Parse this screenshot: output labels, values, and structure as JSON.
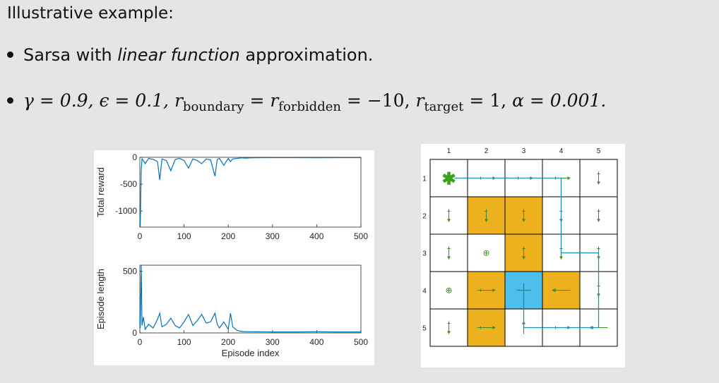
{
  "heading": "Illustrative example:",
  "bullets": {
    "b1": {
      "prefix": "Sarsa with ",
      "italic": "linear function",
      "suffix": " approximation."
    },
    "b2": {
      "gamma": "γ = 0.9,",
      "epsilon": "ϵ = 0.1,",
      "r": "r",
      "sub_boundary": "boundary",
      "eq1": " = ",
      "sub_forbidden": "forbidden",
      "eq2": " = −10,",
      "sub_target": "target",
      "eq3": " = 1,",
      "alpha": "α = 0.001."
    }
  },
  "colors": {
    "line": "#0072bd",
    "forbidden": "#edb120",
    "target": "#4dbeee",
    "arrow": "#3a8a1e",
    "path": "#1a8fb0"
  },
  "chart_data": [
    {
      "type": "line",
      "title": "",
      "xlabel": "",
      "ylabel": "Total reward",
      "xlim": [
        0,
        500
      ],
      "ylim": [
        -1300,
        0
      ],
      "yticks": [
        "0",
        "-500",
        "-1000"
      ],
      "xticks": [
        "0",
        "100",
        "200",
        "300",
        "400",
        "500"
      ],
      "series": [
        {
          "x": [
            1,
            3,
            5,
            8,
            12,
            20,
            30,
            40,
            45,
            50,
            60,
            70,
            80,
            90,
            100,
            110,
            120,
            130,
            140,
            150,
            160,
            170,
            175,
            180,
            190,
            200,
            205,
            210,
            220,
            230,
            240,
            250,
            260,
            300,
            350,
            400,
            450,
            500
          ],
          "values": [
            -1300,
            -250,
            -30,
            -60,
            -120,
            -20,
            -40,
            -80,
            -420,
            -30,
            -60,
            -250,
            -40,
            -20,
            -60,
            -200,
            -30,
            -60,
            -120,
            -30,
            -50,
            -350,
            -40,
            -20,
            -150,
            -20,
            -80,
            -30,
            -20,
            -10,
            -15,
            -10,
            -8,
            -7,
            -6,
            -8,
            -6,
            -6
          ]
        }
      ]
    },
    {
      "type": "line",
      "title": "",
      "xlabel": "Episode index",
      "ylabel": "Episode length",
      "xlim": [
        0,
        500
      ],
      "ylim": [
        0,
        550
      ],
      "yticks": [
        "500",
        "0"
      ],
      "xticks": [
        "0",
        "100",
        "200",
        "300",
        "400",
        "500"
      ],
      "series": [
        {
          "x": [
            1,
            3,
            5,
            8,
            12,
            20,
            30,
            40,
            45,
            50,
            60,
            70,
            80,
            90,
            100,
            110,
            120,
            130,
            140,
            150,
            160,
            170,
            175,
            180,
            190,
            200,
            205,
            210,
            220,
            230,
            240,
            250,
            260,
            300,
            350,
            400,
            450,
            500
          ],
          "values": [
            40,
            550,
            60,
            130,
            30,
            70,
            40,
            110,
            160,
            50,
            70,
            120,
            60,
            40,
            90,
            150,
            60,
            100,
            150,
            80,
            90,
            160,
            70,
            40,
            90,
            30,
            160,
            50,
            20,
            12,
            10,
            10,
            9,
            8,
            8,
            9,
            8,
            8
          ]
        }
      ]
    }
  ],
  "grid": {
    "col_labels": [
      "1",
      "2",
      "3",
      "4",
      "5"
    ],
    "row_labels": [
      "1",
      "2",
      "3",
      "4",
      "5"
    ],
    "forbidden": [
      [
        2,
        2
      ],
      [
        2,
        3
      ],
      [
        3,
        3
      ],
      [
        4,
        2
      ],
      [
        4,
        4
      ],
      [
        5,
        2
      ]
    ],
    "target": [
      [
        4,
        3
      ]
    ],
    "start": [
      1,
      1
    ],
    "start_symbol": "✱",
    "stay_symbol": "⊕",
    "stay_cells": [
      [
        3,
        2
      ],
      [
        4,
        1
      ]
    ]
  }
}
